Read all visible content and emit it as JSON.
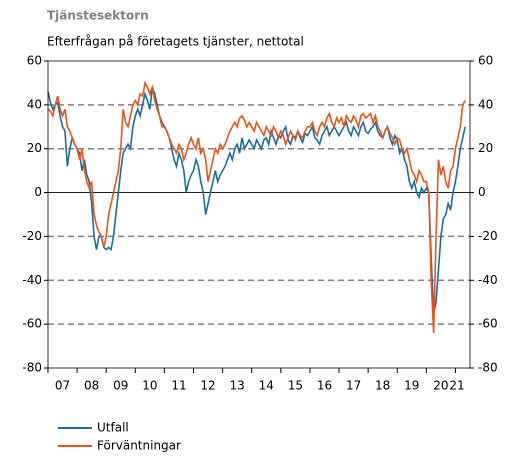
{
  "chart_data": {
    "type": "line",
    "title": "Tjänstesektorn",
    "subtitle": "Efterfrågan på företagets tjänster, nettotal",
    "x": [
      0,
      1,
      2,
      3,
      4,
      5,
      6,
      7,
      8,
      9,
      10,
      11,
      12,
      13,
      14,
      15,
      16,
      17,
      18,
      19,
      20,
      21,
      22,
      23,
      24,
      25,
      26,
      27,
      28,
      29,
      30,
      31,
      32,
      33,
      34,
      35,
      36,
      37,
      38,
      39,
      40,
      41,
      42,
      43,
      44,
      45,
      46,
      47,
      48,
      49,
      50,
      51,
      52,
      53,
      54,
      55,
      56,
      57,
      58,
      59,
      60,
      61,
      62,
      63,
      64,
      65,
      66,
      67,
      68,
      69,
      70,
      71,
      72,
      73,
      74,
      75,
      76,
      77,
      78,
      79,
      80,
      81,
      82,
      83,
      84,
      85,
      86,
      87,
      88,
      89,
      90,
      91,
      92,
      93,
      94,
      95,
      96,
      97,
      98,
      99,
      100,
      101,
      102,
      103,
      104,
      105,
      106,
      107,
      108,
      109,
      110,
      111,
      112,
      113,
      114,
      115,
      116,
      117,
      118,
      119,
      120,
      121,
      122,
      123,
      124,
      125,
      126,
      127,
      128,
      129,
      130,
      131,
      132,
      133,
      134,
      135,
      136,
      137,
      138,
      139,
      140,
      141,
      142,
      143,
      144,
      145,
      146,
      147,
      148,
      149,
      150,
      151,
      152,
      153,
      154,
      155,
      156,
      157,
      158,
      159,
      160,
      161,
      162,
      163,
      164,
      165,
      166,
      167,
      168,
      169,
      170,
      171,
      172
    ],
    "xlim": [
      0,
      174
    ],
    "xticks": [
      {
        "value": 6,
        "label": "07"
      },
      {
        "value": 18,
        "label": "08"
      },
      {
        "value": 30,
        "label": "09"
      },
      {
        "value": 42,
        "label": "10"
      },
      {
        "value": 54,
        "label": "11"
      },
      {
        "value": 66,
        "label": "12"
      },
      {
        "value": 78,
        "label": "13"
      },
      {
        "value": 90,
        "label": "14"
      },
      {
        "value": 102,
        "label": "15"
      },
      {
        "value": 114,
        "label": "16"
      },
      {
        "value": 126,
        "label": "17"
      },
      {
        "value": 138,
        "label": "18"
      },
      {
        "value": 150,
        "label": "19"
      },
      {
        "value": 162,
        "label": "20"
      },
      {
        "value": 174,
        "label": "21"
      }
    ],
    "xminorticks": [
      0,
      12,
      24,
      36,
      48,
      60,
      72,
      84,
      96,
      108,
      120,
      132,
      144,
      156,
      168
    ],
    "ylim": [
      -80,
      60
    ],
    "yticks": [
      -80,
      -60,
      -40,
      -20,
      0,
      20,
      40,
      60
    ],
    "grid": true,
    "series": [
      {
        "name": "Utfall",
        "color": "#1a6e99",
        "values": [
          46,
          41,
          38,
          40,
          41,
          35,
          30,
          28,
          12,
          20,
          25,
          22,
          20,
          18,
          10,
          15,
          8,
          5,
          -5,
          -20,
          -26,
          -20,
          -20,
          -25,
          -26,
          -25,
          -26,
          -20,
          -10,
          0,
          10,
          18,
          20,
          22,
          20,
          30,
          35,
          38,
          35,
          40,
          45,
          42,
          38,
          48,
          45,
          40,
          35,
          32,
          30,
          28,
          25,
          20,
          15,
          12,
          18,
          15,
          10,
          0,
          5,
          8,
          10,
          15,
          12,
          5,
          0,
          -10,
          -5,
          0,
          5,
          10,
          5,
          8,
          10,
          12,
          15,
          18,
          15,
          20,
          22,
          18,
          25,
          20,
          22,
          24,
          22,
          20,
          24,
          22,
          20,
          24,
          25,
          22,
          28,
          25,
          22,
          26,
          25,
          28,
          30,
          24,
          22,
          26,
          25,
          28,
          25,
          23,
          27,
          26,
          28,
          30,
          25,
          24,
          22,
          26,
          28,
          30,
          26,
          28,
          30,
          28,
          26,
          28,
          30,
          32,
          28,
          26,
          30,
          28,
          26,
          30,
          32,
          28,
          27,
          29,
          30,
          32,
          28,
          26,
          25,
          28,
          30,
          25,
          22,
          26,
          24,
          18,
          20,
          15,
          12,
          5,
          2,
          5,
          0,
          -2,
          2,
          0,
          2,
          0,
          -30,
          -55,
          -50,
          -35,
          -20,
          -12,
          -10,
          -5,
          -8,
          0,
          5,
          12,
          20,
          25,
          30
        ]
      },
      {
        "name": "Förväntningar",
        "color": "#e8541a",
        "values": [
          38,
          37,
          35,
          40,
          44,
          38,
          35,
          38,
          30,
          28,
          25,
          22,
          20,
          15,
          20,
          10,
          5,
          2,
          5,
          -10,
          -15,
          -18,
          -20,
          -25,
          -20,
          -10,
          -5,
          0,
          5,
          10,
          20,
          38,
          32,
          30,
          35,
          40,
          42,
          40,
          45,
          44,
          50,
          48,
          45,
          48,
          42,
          38,
          35,
          30,
          30,
          28,
          25,
          22,
          20,
          18,
          22,
          20,
          15,
          18,
          22,
          25,
          22,
          20,
          25,
          18,
          20,
          15,
          5,
          10,
          15,
          20,
          18,
          22,
          20,
          22,
          25,
          28,
          30,
          32,
          30,
          34,
          35,
          33,
          30,
          32,
          30,
          28,
          32,
          30,
          28,
          26,
          30,
          28,
          26,
          30,
          28,
          25,
          28,
          26,
          22,
          25,
          28,
          26,
          24,
          28,
          26,
          25,
          28,
          30,
          30,
          32,
          28,
          26,
          30,
          32,
          30,
          34,
          36,
          32,
          30,
          34,
          32,
          34,
          30,
          35,
          33,
          32,
          35,
          33,
          30,
          35,
          36,
          34,
          35,
          36,
          32,
          35,
          30,
          28,
          25,
          28,
          30,
          27,
          25,
          22,
          25,
          24,
          20,
          18,
          20,
          15,
          10,
          8,
          5,
          10,
          8,
          5,
          5,
          0,
          -40,
          -64,
          -20,
          15,
          8,
          12,
          5,
          2,
          10,
          12,
          20,
          25,
          30,
          40,
          42
        ]
      }
    ]
  }
}
